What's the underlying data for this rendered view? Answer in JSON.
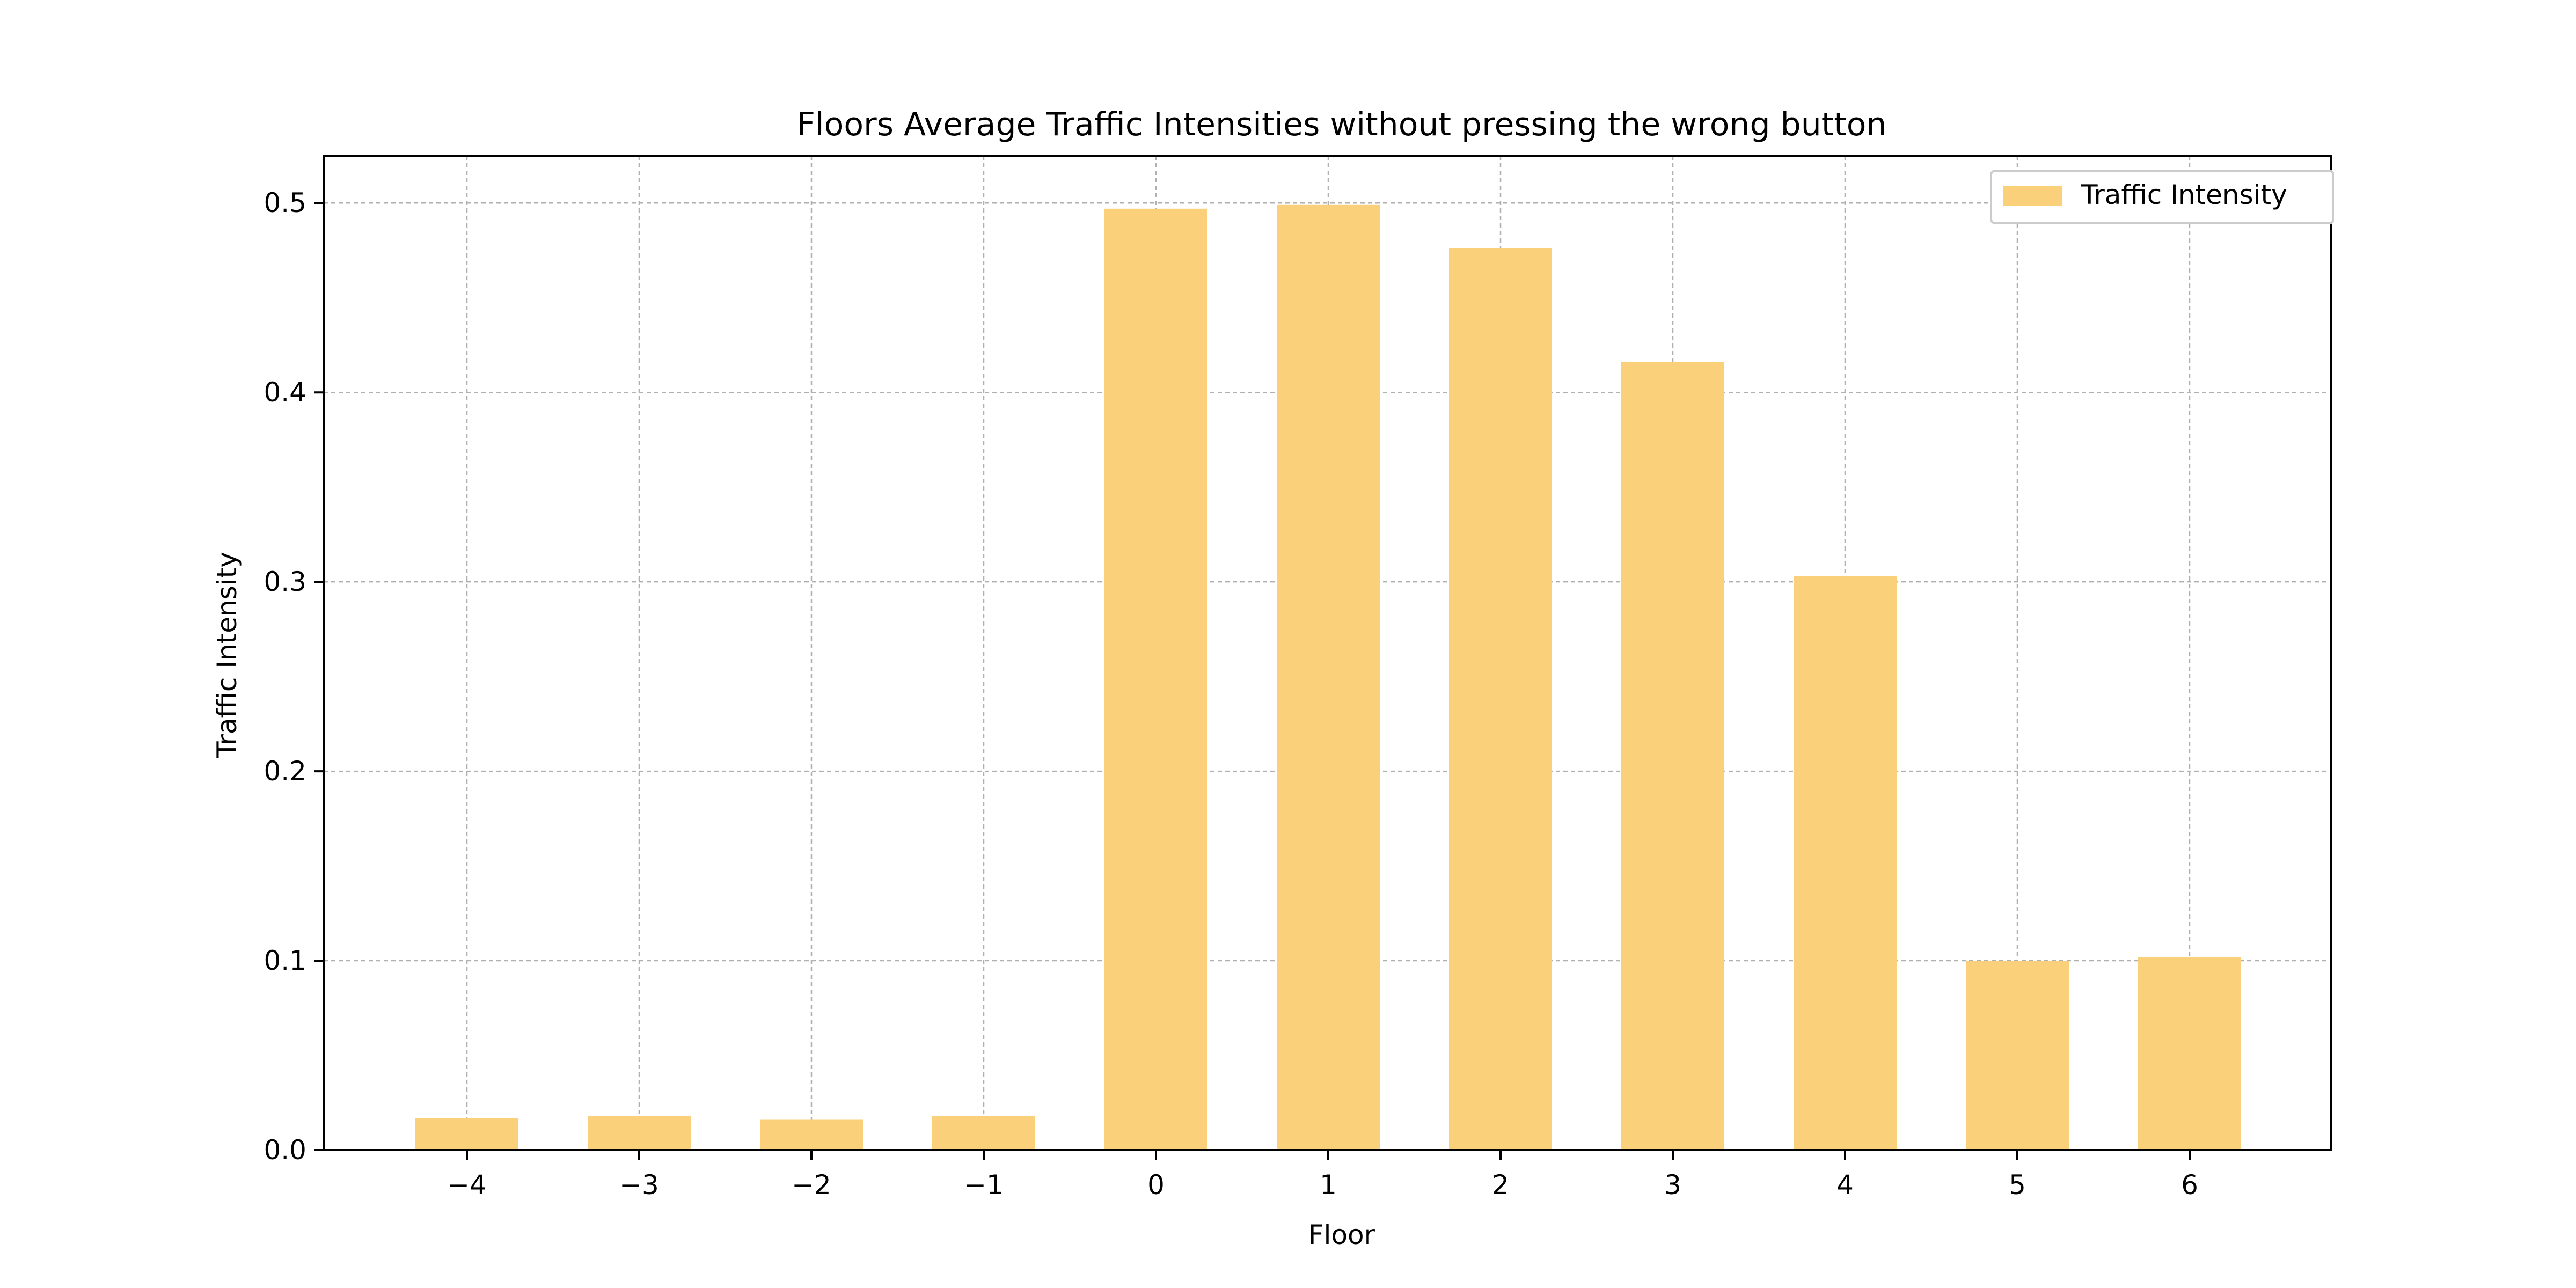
{
  "chart_data": {
    "type": "bar",
    "title": "Floors Average Traffic Intensities without pressing the wrong button",
    "xlabel": "Floor",
    "ylabel": "Traffic Intensity",
    "categories": [
      "−4",
      "−3",
      "−2",
      "−1",
      "0",
      "1",
      "2",
      "3",
      "4",
      "5",
      "6"
    ],
    "series": [
      {
        "name": "Traffic Intensity",
        "values": [
          0.017,
          0.018,
          0.016,
          0.018,
          0.497,
          0.499,
          0.476,
          0.416,
          0.303,
          0.1,
          0.102
        ]
      }
    ],
    "ylim": [
      0,
      0.525
    ],
    "yticks": [
      "0.0",
      "0.1",
      "0.2",
      "0.3",
      "0.4",
      "0.5"
    ],
    "ytick_values": [
      0,
      0.1,
      0.2,
      0.3,
      0.4,
      0.5
    ],
    "grid": true,
    "legend": {
      "position": "top-right"
    },
    "colors": {
      "bar": "#fbd07a",
      "grid": "#b0b0b0",
      "axis": "#000000",
      "legend_border": "#cccccc"
    }
  }
}
